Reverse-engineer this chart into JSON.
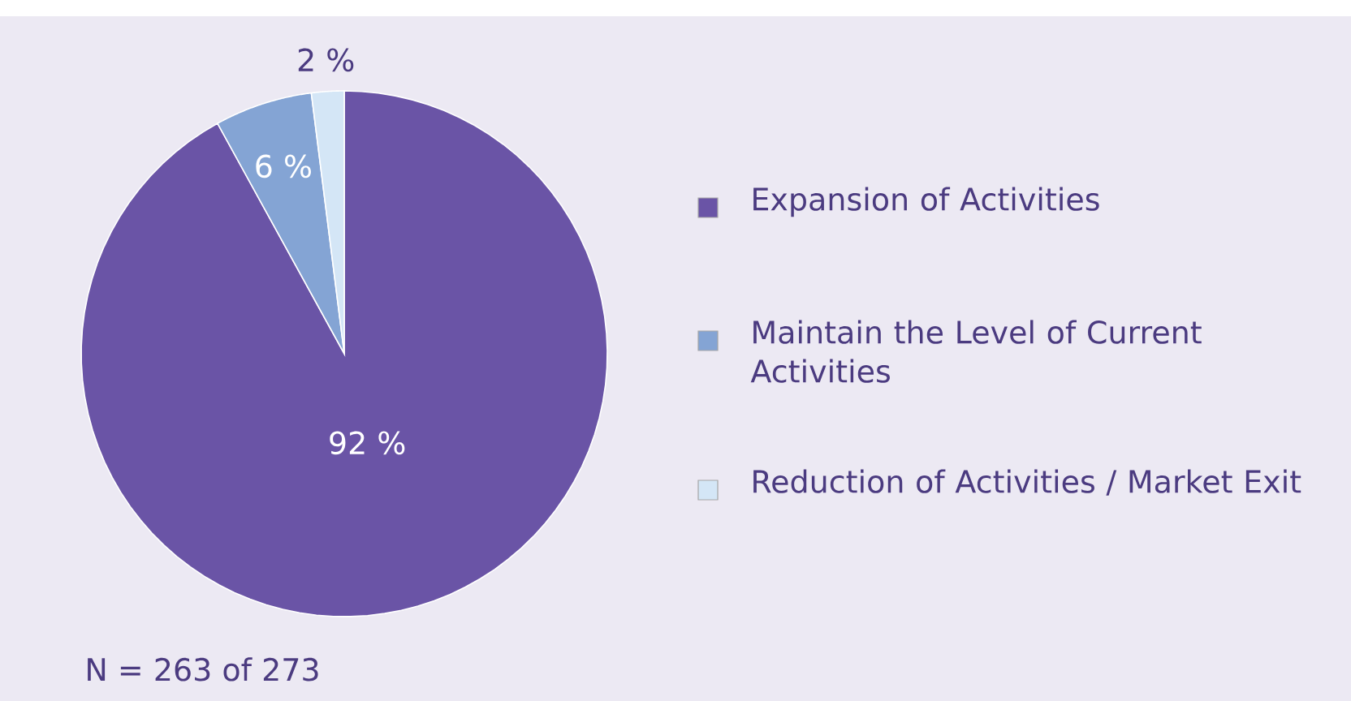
{
  "chart_data": {
    "type": "pie",
    "categories": [
      "Expansion of Activities",
      "Maintain the Level of Current Activities",
      "Reduction of Activities / Market Exit"
    ],
    "values": [
      92,
      6,
      2
    ],
    "colors": [
      "#6a54a6",
      "#84a4d4",
      "#d4e6f6"
    ],
    "value_labels": [
      "92 %",
      "6 %",
      "2 %"
    ],
    "legend": "right",
    "annotations": [
      "N = 263 of 273"
    ]
  }
}
